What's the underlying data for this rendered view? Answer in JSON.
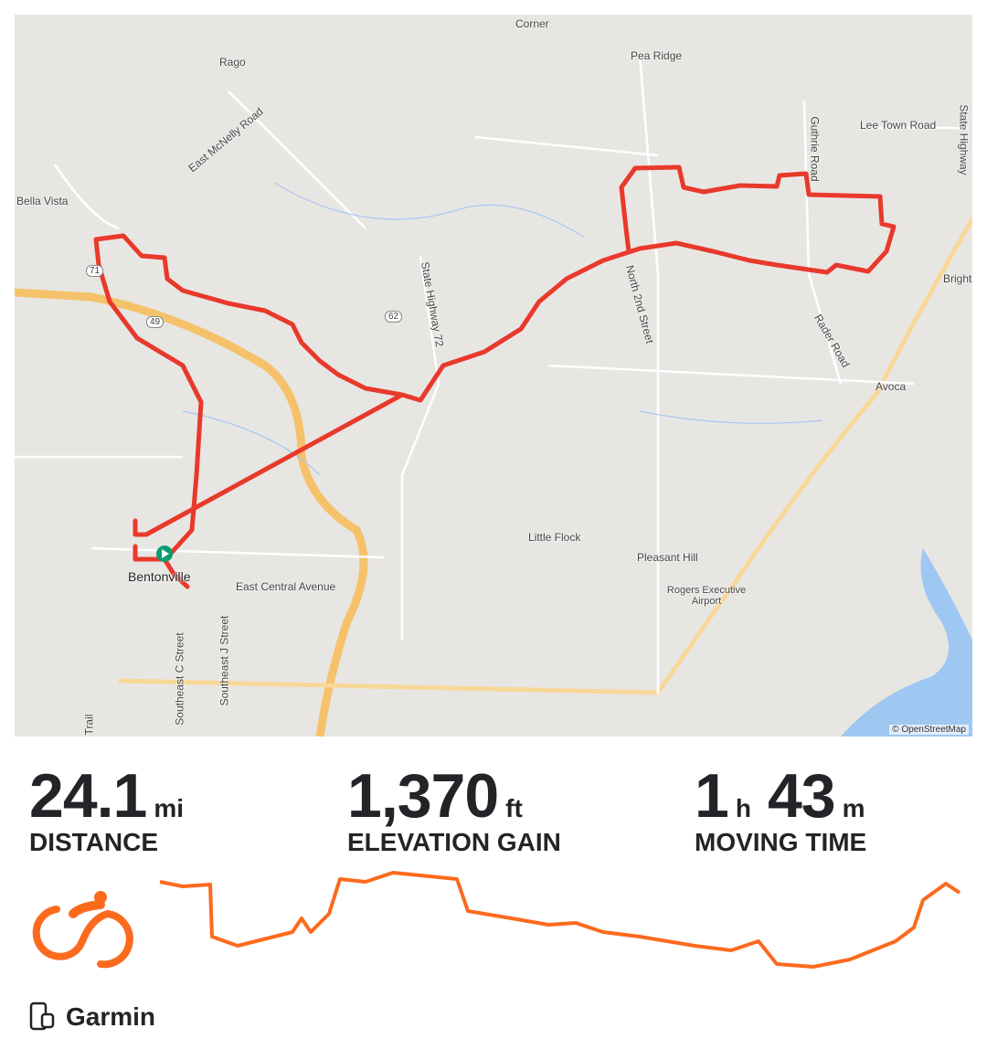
{
  "map": {
    "labels": [
      "Rago",
      "Corner",
      "Pea Ridge",
      "Lee Town Road",
      "Guthrie Road",
      "State Highway",
      "East McNelly Road",
      "Bella Vista",
      "State Highway 72",
      "North 2nd Street",
      "Rader Road",
      "Bright",
      "Avoca",
      "Little Flock",
      "Pleasant Hill",
      "Rogers Executive Airport",
      "Bentonville",
      "East Central Avenue",
      "Southeast C Street",
      "Southeast J Street",
      "Trail",
      "49",
      "62",
      "71"
    ],
    "attribution": "© OpenStreetMap",
    "colors": {
      "route": "#e8392b",
      "water": "#9ec7f2",
      "highway": "#f5c26b",
      "start": "#0a9e6e"
    }
  },
  "stats": [
    {
      "value": "24.1",
      "unit": "mi",
      "label": "DISTANCE"
    },
    {
      "value": "1,370",
      "unit": "ft",
      "label": "ELEVATION GAIN"
    },
    {
      "value_h": "1",
      "unit_h": "h",
      "value_m": "43",
      "unit_m": "m",
      "label": "MOVING TIME"
    }
  ],
  "activity_icon": "cycling-icon",
  "accent": "#fc6a1e",
  "device": {
    "icon": "phone-watch-icon",
    "name": "Garmin"
  }
}
